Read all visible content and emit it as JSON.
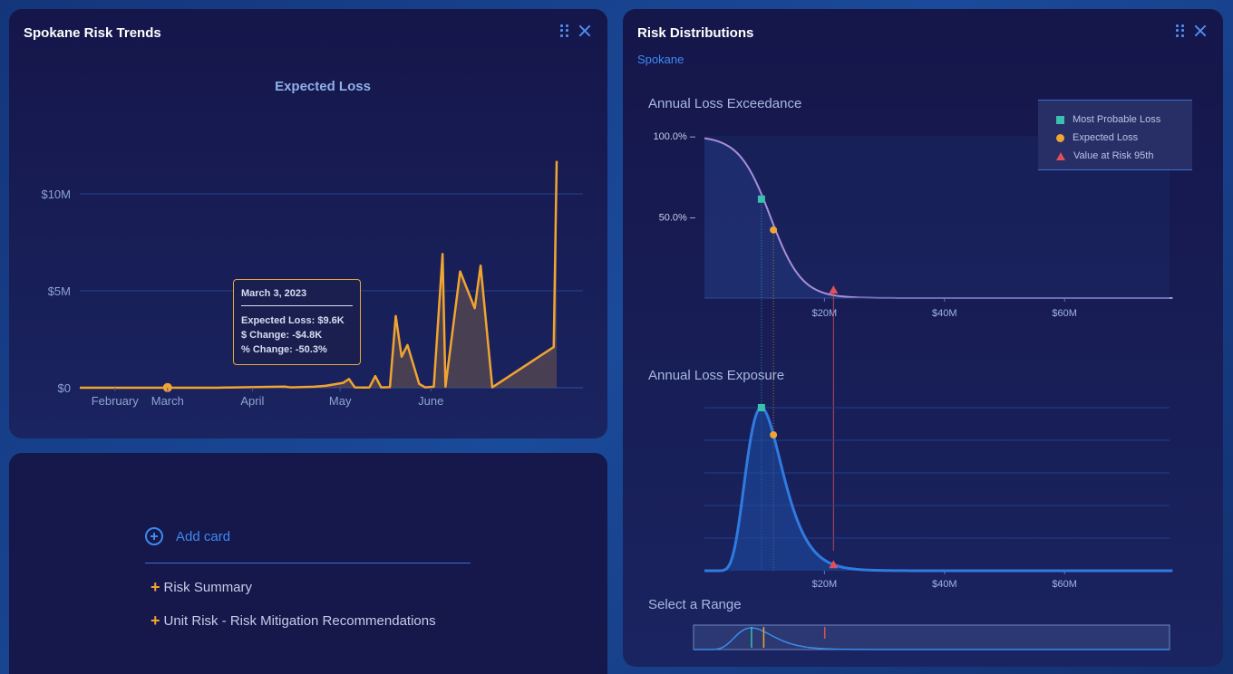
{
  "trends": {
    "title": "Spokane Risk Trends",
    "chart_title": "Expected Loss",
    "tooltip": {
      "date": "March 3, 2023",
      "lines": [
        "Expected Loss: $9.6K",
        "$ Change: -$4.8K",
        "% Change: -50.3%"
      ]
    }
  },
  "add_card": {
    "label": "Add card",
    "options": [
      "Risk Summary",
      "Unit Risk - Risk Mitigation Recommendations"
    ]
  },
  "distributions": {
    "title": "Risk Distributions",
    "location_link": "Spokane",
    "exceedance_title": "Annual Loss Exceedance",
    "exposure_title": "Annual Loss Exposure",
    "range_title": "Select a Range",
    "legend": [
      "Most Probable Loss",
      "Expected Loss",
      "Value at Risk 95th"
    ]
  },
  "colors": {
    "expected_loss": "#f0a431",
    "most_probable": "#3bbfae",
    "var95": "#e0505a",
    "exceedance_line": "#a88fd8",
    "exposure_line": "#2f7be0"
  },
  "chart_data": [
    {
      "type": "area",
      "title": "Expected Loss",
      "x_ticks": [
        "February",
        "March",
        "April",
        "May",
        "June"
      ],
      "y_ticks": [
        "$0",
        "$5M",
        "$10M"
      ],
      "ylim": [
        0,
        12
      ],
      "y_unit": "$M",
      "series": [
        {
          "values": [
            [
              0,
              0
            ],
            [
              30,
              0
            ],
            [
              47,
              0
            ],
            [
              50,
              0.01
            ],
            [
              70,
              0.06
            ],
            [
              72,
              0.02
            ],
            [
              80,
              0.05
            ],
            [
              84,
              0.1
            ],
            [
              90,
              0.25
            ],
            [
              92,
              0.45
            ],
            [
              94,
              0.02
            ],
            [
              97,
              0.01
            ],
            [
              99,
              0.02
            ],
            [
              101,
              0.6
            ],
            [
              103,
              0.02
            ],
            [
              106,
              0.03
            ],
            [
              108,
              3.7
            ],
            [
              110,
              1.6
            ],
            [
              112,
              2.2
            ],
            [
              116,
              0.2
            ],
            [
              118,
              0.02
            ],
            [
              121,
              0.05
            ],
            [
              124,
              6.9
            ],
            [
              125,
              0.05
            ],
            [
              130,
              6.0
            ],
            [
              135,
              4.1
            ],
            [
              137,
              6.3
            ],
            [
              141,
              0.02
            ],
            [
              162,
              2.1
            ],
            [
              163,
              11.7
            ]
          ]
        }
      ],
      "highlight_point": {
        "x": 30,
        "y": 0.0096,
        "label": "March 3, 2023"
      },
      "grid": true
    },
    {
      "type": "line",
      "title": "Annual Loss Exceedance",
      "x_ticks": [
        "$20M",
        "$40M",
        "$60M"
      ],
      "y_ticks": [
        "50.0%",
        "100.0%"
      ],
      "markers": [
        {
          "name": "Most Probable Loss",
          "x": 9.5,
          "y": 61
        },
        {
          "name": "Expected Loss",
          "x": 11.5,
          "y": 42
        },
        {
          "name": "Value at Risk 95th",
          "x": 21.5,
          "y": 5
        }
      ],
      "legend": "top-right"
    },
    {
      "type": "area",
      "title": "Annual Loss Exposure",
      "x_ticks": [
        "$20M",
        "$40M",
        "$60M"
      ],
      "markers": [
        {
          "name": "Most Probable Loss",
          "x": 9.5
        },
        {
          "name": "Expected Loss",
          "x": 11.5
        },
        {
          "name": "Value at Risk 95th",
          "x": 21.5
        }
      ]
    }
  ]
}
